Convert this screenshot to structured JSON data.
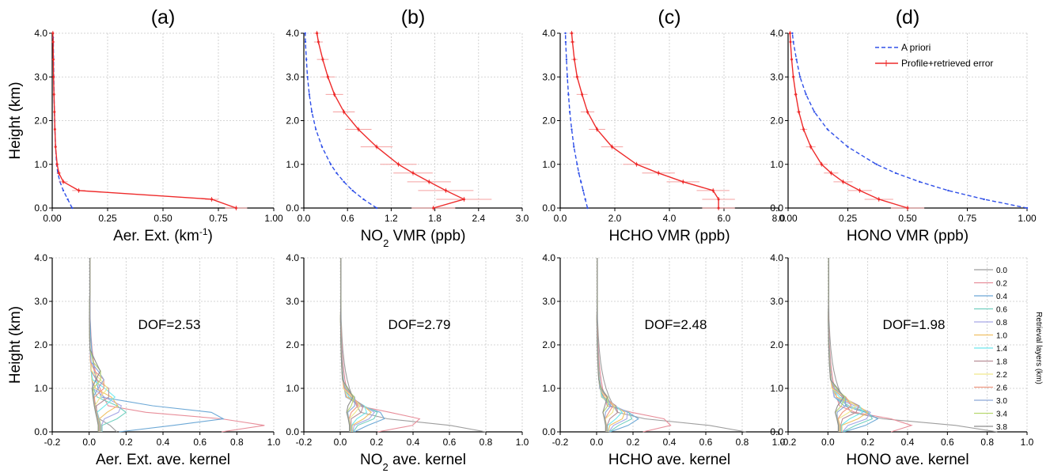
{
  "panel_labels": [
    "(a)",
    "(b)",
    "(c)",
    "(d)"
  ],
  "legend": {
    "apriori": "A priori",
    "profile": "Profile+retrieved error"
  },
  "colors": {
    "apriori": "#3050e8",
    "profile": "#ee2a2a",
    "profile_error": "#f4a0a0",
    "grid": "#c8c8c8"
  },
  "kernel_legend_title": "Retrieval layers (km)",
  "kernel_layers": [
    "0.0",
    "0.2",
    "0.4",
    "0.6",
    "0.8",
    "1.0",
    "1.4",
    "1.8",
    "2.2",
    "2.6",
    "3.0",
    "3.4",
    "3.8"
  ],
  "kernel_colors": [
    "#9e9e9e",
    "#e88e9a",
    "#6ca8d6",
    "#72d0c0",
    "#a6a8e6",
    "#f0c064",
    "#6ee8ee",
    "#b88e98",
    "#f0e88a",
    "#f09a82",
    "#8ca6d8",
    "#b8d870",
    "#8e8e8e"
  ],
  "chart_data": [
    {
      "type": "line",
      "xlabel": "Aer. Ext. (km-1)",
      "ylabel": "Height (km)",
      "xlim": [
        0,
        1
      ],
      "ylim": [
        0,
        4
      ],
      "xticks": [
        "0.00",
        "0.25",
        "0.50",
        "0.75",
        "1.00"
      ],
      "yticks": [
        "0.0",
        "1.0",
        "2.0",
        "3.0",
        "4.0"
      ],
      "grid": true,
      "series": [
        {
          "name": "A priori",
          "x": [
            0.09,
            0.07,
            0.05,
            0.035,
            0.025,
            0.02,
            0.015,
            0.012,
            0.01,
            0.008,
            0.007,
            0.006,
            0.005,
            0.004,
            0.004
          ],
          "y": [
            0.0,
            0.2,
            0.4,
            0.6,
            0.8,
            1.0,
            1.4,
            1.8,
            2.2,
            2.6,
            3.0,
            3.4,
            3.8,
            3.9,
            4.0
          ]
        },
        {
          "name": "Profile+retrieved error",
          "x": [
            0.83,
            0.72,
            0.12,
            0.05,
            0.03,
            0.022,
            0.015,
            0.012,
            0.01,
            0.008,
            0.006,
            0.005,
            0.004,
            0.003
          ],
          "y": [
            0.0,
            0.2,
            0.4,
            0.6,
            0.8,
            1.0,
            1.4,
            1.8,
            2.2,
            2.6,
            3.0,
            3.4,
            3.8,
            4.0
          ],
          "error": [
            0.05,
            0.03,
            0.03,
            0.02,
            0.01,
            0.008,
            0.006,
            0.005,
            0.004,
            0.003,
            0.003,
            0.002,
            0.002,
            0.002
          ]
        }
      ]
    },
    {
      "type": "line",
      "xlabel": "NO2 VMR (ppb)",
      "ylabel": "",
      "xlim": [
        0,
        3
      ],
      "ylim": [
        0,
        4
      ],
      "xticks": [
        "0.0",
        "0.6",
        "1.2",
        "1.8",
        "2.4",
        "3.0"
      ],
      "yticks": [
        "0.0",
        "1.0",
        "2.0",
        "3.0",
        "4.0"
      ],
      "grid": true,
      "series": [
        {
          "name": "A priori",
          "x": [
            1.0,
            0.82,
            0.67,
            0.55,
            0.45,
            0.37,
            0.25,
            0.165,
            0.11,
            0.075,
            0.05,
            0.035,
            0.022,
            0.018
          ],
          "y": [
            0.0,
            0.2,
            0.4,
            0.6,
            0.8,
            1.0,
            1.4,
            1.8,
            2.2,
            2.6,
            3.0,
            3.4,
            3.8,
            4.0
          ]
        },
        {
          "name": "Profile+retrieved error",
          "x": [
            1.78,
            2.2,
            1.95,
            1.72,
            1.5,
            1.3,
            1.0,
            0.75,
            0.55,
            0.42,
            0.33,
            0.26,
            0.2,
            0.18
          ],
          "y": [
            0.0,
            0.2,
            0.4,
            0.6,
            0.8,
            1.0,
            1.4,
            1.8,
            2.2,
            2.6,
            3.0,
            3.4,
            3.8,
            4.0
          ],
          "error": [
            0.3,
            0.38,
            0.38,
            0.3,
            0.27,
            0.25,
            0.22,
            0.18,
            0.15,
            0.12,
            0.1,
            0.08,
            0.06,
            0.05
          ]
        }
      ]
    },
    {
      "type": "line",
      "xlabel": "HCHO VMR (ppb)",
      "ylabel": "",
      "xlim": [
        0,
        8
      ],
      "ylim": [
        0,
        4
      ],
      "xticks": [
        "0.0",
        "2.0",
        "4.0",
        "6.0",
        "8.0"
      ],
      "yticks": [
        "0.0",
        "1.0",
        "2.0",
        "3.0",
        "4.0"
      ],
      "grid": true,
      "series": [
        {
          "name": "A priori",
          "x": [
            1.0,
            0.92,
            0.84,
            0.76,
            0.68,
            0.62,
            0.5,
            0.42,
            0.35,
            0.3,
            0.26,
            0.23,
            0.2,
            0.19
          ],
          "y": [
            0.0,
            0.2,
            0.4,
            0.6,
            0.8,
            1.0,
            1.4,
            1.8,
            2.2,
            2.6,
            3.0,
            3.4,
            3.8,
            4.0
          ]
        },
        {
          "name": "Profile+retrieved error",
          "x": [
            5.8,
            5.8,
            5.6,
            4.5,
            3.6,
            2.8,
            1.9,
            1.35,
            1.0,
            0.8,
            0.62,
            0.52,
            0.45,
            0.42
          ],
          "y": [
            0.0,
            0.2,
            0.4,
            0.6,
            0.8,
            1.0,
            1.4,
            1.8,
            2.2,
            2.6,
            3.0,
            3.4,
            3.8,
            4.0
          ],
          "error": [
            0.6,
            0.6,
            0.6,
            0.6,
            0.6,
            0.5,
            0.4,
            0.3,
            0.25,
            0.2,
            0.15,
            0.12,
            0.1,
            0.1
          ]
        }
      ]
    },
    {
      "type": "line",
      "xlabel": "HONO VMR (ppb)",
      "ylabel": "",
      "xlim": [
        0,
        1
      ],
      "ylim": [
        0,
        4
      ],
      "xticks": [
        "0.00",
        "0.25",
        "0.50",
        "0.75",
        "1.00"
      ],
      "yticks": [
        "0.0",
        "1.0",
        "2.0",
        "3.0",
        "4.0"
      ],
      "grid": true,
      "series": [
        {
          "name": "A priori",
          "x": [
            1.0,
            0.82,
            0.67,
            0.55,
            0.45,
            0.37,
            0.25,
            0.165,
            0.11,
            0.075,
            0.05,
            0.035,
            0.022,
            0.018
          ],
          "y": [
            0.0,
            0.2,
            0.4,
            0.6,
            0.8,
            1.0,
            1.4,
            1.8,
            2.2,
            2.6,
            3.0,
            3.4,
            3.8,
            4.0
          ]
        },
        {
          "name": "Profile+retrieved error",
          "x": [
            0.5,
            0.38,
            0.3,
            0.23,
            0.18,
            0.14,
            0.095,
            0.065,
            0.045,
            0.032,
            0.022,
            0.015,
            0.01,
            0.008
          ],
          "y": [
            0.0,
            0.2,
            0.4,
            0.6,
            0.8,
            1.0,
            1.4,
            1.8,
            2.2,
            2.6,
            3.0,
            3.4,
            3.8,
            4.0
          ],
          "error": [
            0.07,
            0.06,
            0.05,
            0.04,
            0.03,
            0.025,
            0.02,
            0.015,
            0.01,
            0.008,
            0.006,
            0.004,
            0.003,
            0.002
          ]
        }
      ]
    },
    {
      "type": "line",
      "xlabel": "Aer. Ext. ave. kernel",
      "ylabel": "Height (km)",
      "annotation": "DOF=2.53",
      "xlim": [
        -0.2,
        1.0
      ],
      "ylim": [
        0,
        4
      ],
      "xticks": [
        "-0.2",
        "0.0",
        "0.2",
        "0.4",
        "0.6",
        "0.8",
        "1.0"
      ],
      "yticks": [
        "0.0",
        "1.0",
        "2.0",
        "3.0",
        "4.0"
      ],
      "grid": true,
      "kernel_peaks": [
        0.15,
        0.95,
        0.75,
        0.2,
        0.18,
        0.16,
        0.14,
        0.12,
        0.1,
        0.09,
        0.08,
        0.07,
        0.06
      ],
      "kernel_peak_heights": [
        0.0,
        0.15,
        0.35,
        0.45,
        0.55,
        0.65,
        0.8,
        0.9,
        1.0,
        1.1,
        1.2,
        1.3,
        1.4
      ]
    },
    {
      "type": "line",
      "xlabel": "NO2 ave. kernel",
      "ylabel": "",
      "annotation": "DOF=2.79",
      "xlim": [
        -0.2,
        1.0
      ],
      "ylim": [
        0,
        4
      ],
      "xticks": [
        "-0.2",
        "0.0",
        "0.2",
        "0.4",
        "0.6",
        "0.8",
        "1.0"
      ],
      "yticks": [
        "0.0",
        "1.0",
        "2.0",
        "3.0",
        "4.0"
      ],
      "grid": true,
      "kernel_peaks": [
        0.8,
        0.45,
        0.25,
        0.21,
        0.19,
        0.17,
        0.15,
        0.13,
        0.11,
        0.1,
        0.09,
        0.08,
        0.07
      ],
      "kernel_peak_heights": [
        0.0,
        0.25,
        0.35,
        0.4,
        0.42,
        0.45,
        0.5,
        0.55,
        0.6,
        0.65,
        0.7,
        0.75,
        0.8
      ]
    },
    {
      "type": "line",
      "xlabel": "HCHO ave. kernel",
      "ylabel": "",
      "annotation": "DOF=2.48",
      "xlim": [
        -0.2,
        1.0
      ],
      "ylim": [
        0,
        4
      ],
      "xticks": [
        "-0.2",
        "0.0",
        "0.2",
        "0.4",
        "0.6",
        "0.8",
        "1.0"
      ],
      "yticks": [
        "0.0",
        "1.0",
        "2.0",
        "3.0",
        "4.0"
      ],
      "grid": true,
      "kernel_peaks": [
        0.82,
        0.42,
        0.23,
        0.2,
        0.18,
        0.16,
        0.14,
        0.12,
        0.1,
        0.09,
        0.08,
        0.07,
        0.06
      ],
      "kernel_peak_heights": [
        0.0,
        0.2,
        0.3,
        0.35,
        0.38,
        0.4,
        0.45,
        0.5,
        0.55,
        0.6,
        0.65,
        0.7,
        0.75
      ]
    },
    {
      "type": "line",
      "xlabel": "HONO ave. kernel",
      "ylabel": "",
      "annotation": "DOF=1.98",
      "xlim": [
        -0.2,
        1.0
      ],
      "ylim": [
        0,
        4
      ],
      "xticks": [
        "-0.2",
        "0.0",
        "0.2",
        "0.4",
        "0.6",
        "0.8",
        "1.0"
      ],
      "yticks": [
        "0.0",
        "1.0",
        "2.0",
        "3.0",
        "4.0"
      ],
      "grid": true,
      "kernel_peaks": [
        0.85,
        0.42,
        0.25,
        0.23,
        0.22,
        0.2,
        0.18,
        0.16,
        0.14,
        0.12,
        0.1,
        0.09,
        0.08
      ],
      "kernel_peak_heights": [
        0.0,
        0.15,
        0.3,
        0.35,
        0.4,
        0.45,
        0.5,
        0.55,
        0.6,
        0.65,
        0.7,
        0.75,
        0.8
      ]
    }
  ]
}
